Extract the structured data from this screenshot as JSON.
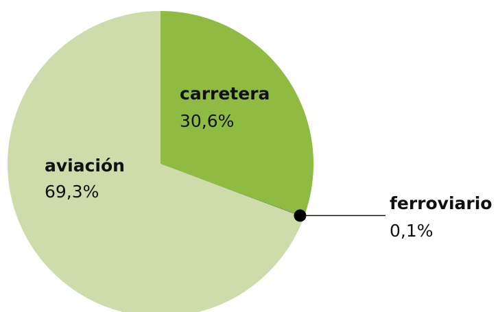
{
  "chart_data": {
    "type": "pie",
    "categories": [
      "carretera",
      "ferroviario",
      "aviación"
    ],
    "values": [
      30.6,
      0.1,
      69.3
    ],
    "value_labels": [
      "30,6%",
      "0,1%",
      "69,3%"
    ],
    "colors": [
      "#8fbb43",
      "#6b9a38",
      "#cddcaa"
    ]
  }
}
